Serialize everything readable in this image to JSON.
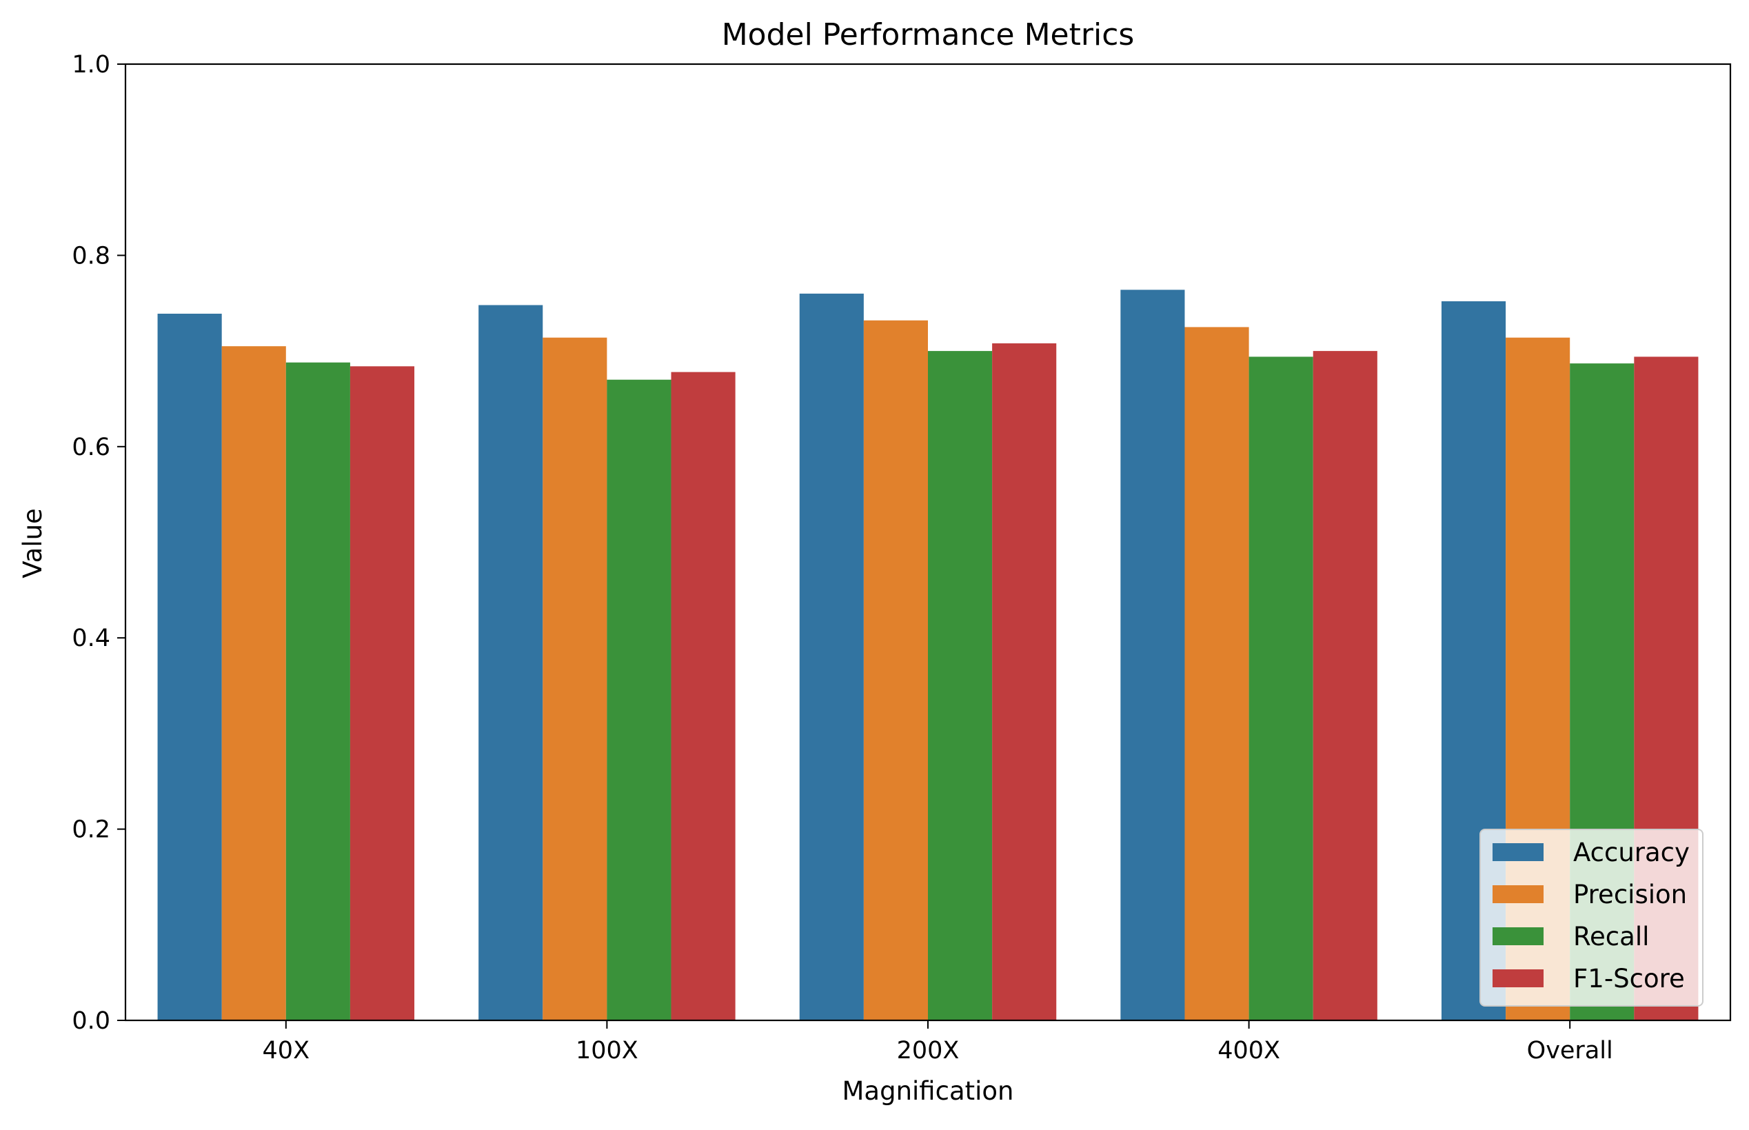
{
  "chart_data": {
    "type": "bar",
    "title": "Model Performance Metrics",
    "xlabel": "Magnification",
    "ylabel": "Value",
    "categories": [
      "40X",
      "100X",
      "200X",
      "400X",
      "Overall"
    ],
    "ylim": [
      0,
      1.0
    ],
    "yticks": [
      "0.0",
      "0.2",
      "0.4",
      "0.6",
      "0.8",
      "1.0"
    ],
    "grid": false,
    "legend_position": "lower-right",
    "series": [
      {
        "name": "Accuracy",
        "color": "#3274a1",
        "values": [
          0.739,
          0.748,
          0.76,
          0.764,
          0.752
        ]
      },
      {
        "name": "Precision",
        "color": "#e1812c",
        "values": [
          0.705,
          0.714,
          0.732,
          0.725,
          0.714
        ]
      },
      {
        "name": "Recall",
        "color": "#3a923a",
        "values": [
          0.688,
          0.67,
          0.7,
          0.694,
          0.687
        ]
      },
      {
        "name": "F1-Score",
        "color": "#c03d3e",
        "values": [
          0.684,
          0.678,
          0.708,
          0.7,
          0.694
        ]
      }
    ]
  }
}
